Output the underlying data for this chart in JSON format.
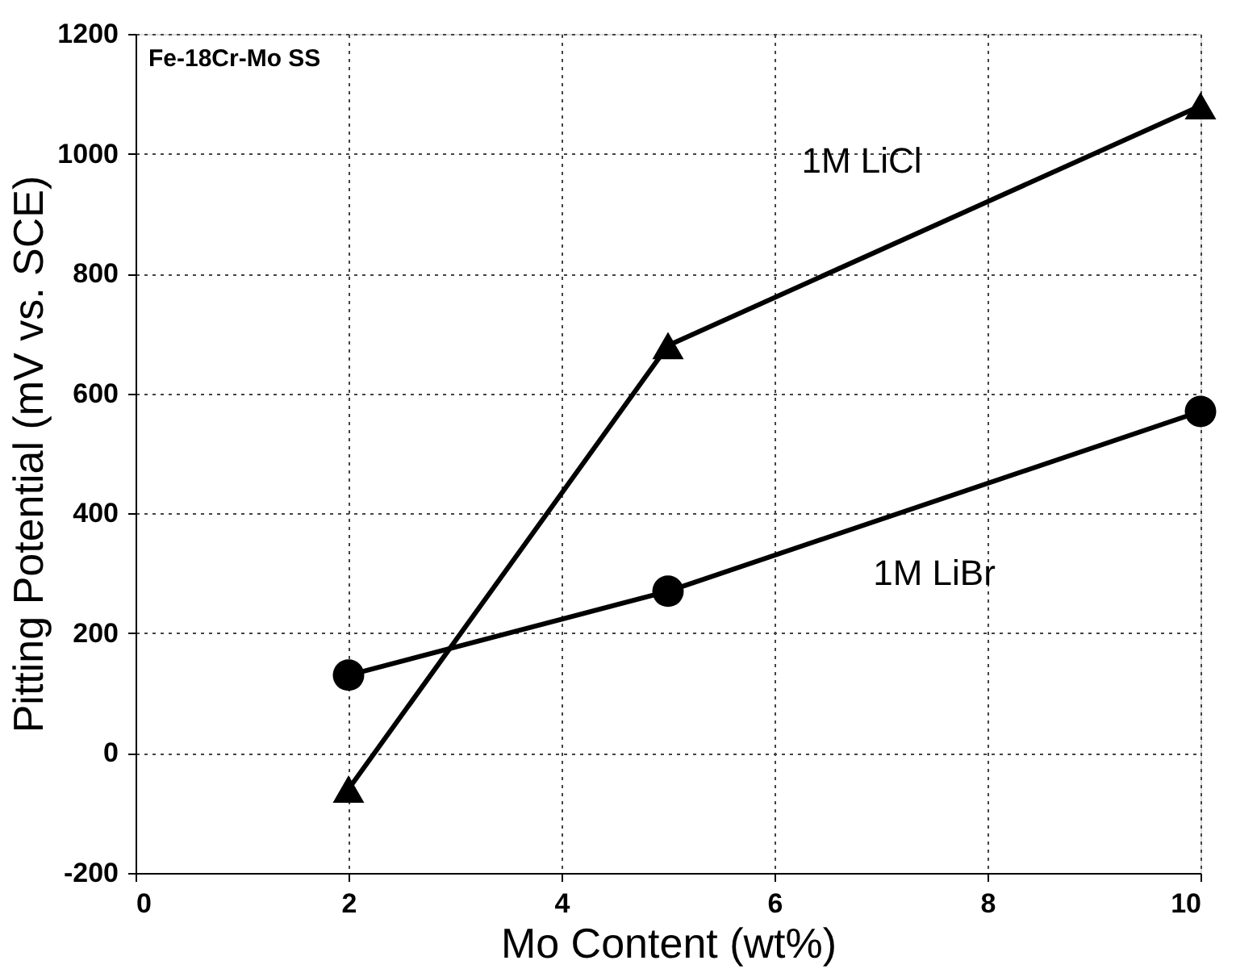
{
  "chart_data": {
    "type": "line",
    "xlabel": "Mo Content (wt%)",
    "ylabel": "Pitting Potential (mV vs. SCE)",
    "annotations": [
      "Fe-18Cr-Mo SS"
    ],
    "x": [
      2,
      5,
      10
    ],
    "series": [
      {
        "name": "1M LiCl",
        "color": "#000000",
        "values": [
          -60,
          680,
          1080
        ],
        "marker": "triangle"
      },
      {
        "name": "1M LiBr",
        "color": "#000000",
        "values": [
          130,
          270,
          570
        ],
        "marker": "circle"
      }
    ],
    "xlim": [
      0,
      10
    ],
    "xticks": [
      0,
      2,
      4,
      6,
      8,
      10
    ],
    "ylim": [
      -200,
      1200
    ],
    "yticks": [
      -200,
      0,
      200,
      400,
      600,
      800,
      1000,
      1200
    ],
    "grid": true,
    "line_style": "solid"
  }
}
